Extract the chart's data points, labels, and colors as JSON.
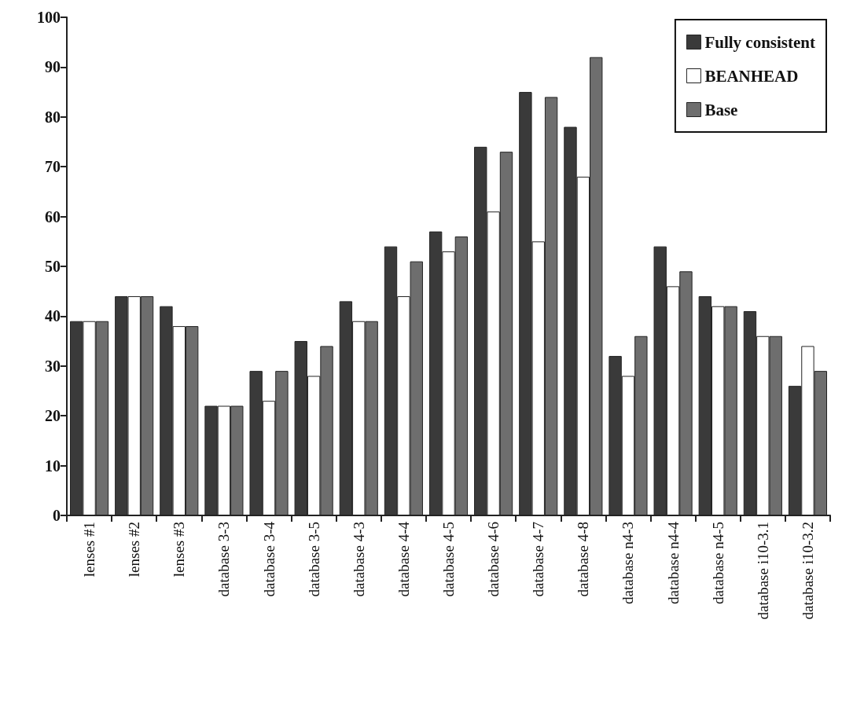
{
  "chart_data": {
    "type": "bar",
    "categories": [
      "lenses #1",
      "lenses #2",
      "lenses #3",
      "database 3-3",
      "database 3-4",
      "database 3-5",
      "database 4-3",
      "database 4-4",
      "database 4-5",
      "database 4-6",
      "database 4-7",
      "database 4-8",
      "database n4-3",
      "database n4-4",
      "database n4-5",
      "database i10-3.1",
      "database i10-3.2"
    ],
    "series": [
      {
        "name": "Fully consistent",
        "color": "#3a3a3a",
        "values": [
          39,
          44,
          42,
          22,
          29,
          35,
          43,
          54,
          57,
          74,
          85,
          78,
          32,
          54,
          44,
          41,
          26
        ]
      },
      {
        "name": "BEANHEAD",
        "color": "#ffffff",
        "values": [
          39,
          44,
          38,
          22,
          23,
          28,
          39,
          44,
          53,
          61,
          55,
          68,
          28,
          46,
          42,
          36,
          34
        ]
      },
      {
        "name": "Base",
        "color": "#6e6e6e",
        "values": [
          39,
          44,
          38,
          22,
          29,
          34,
          39,
          51,
          56,
          73,
          84,
          92,
          36,
          49,
          42,
          36,
          29
        ]
      }
    ],
    "ylim": [
      0,
      100
    ],
    "yticks": [
      0,
      10,
      20,
      30,
      40,
      50,
      60,
      70,
      80,
      90,
      100
    ],
    "grid": false,
    "legend": "top right"
  }
}
